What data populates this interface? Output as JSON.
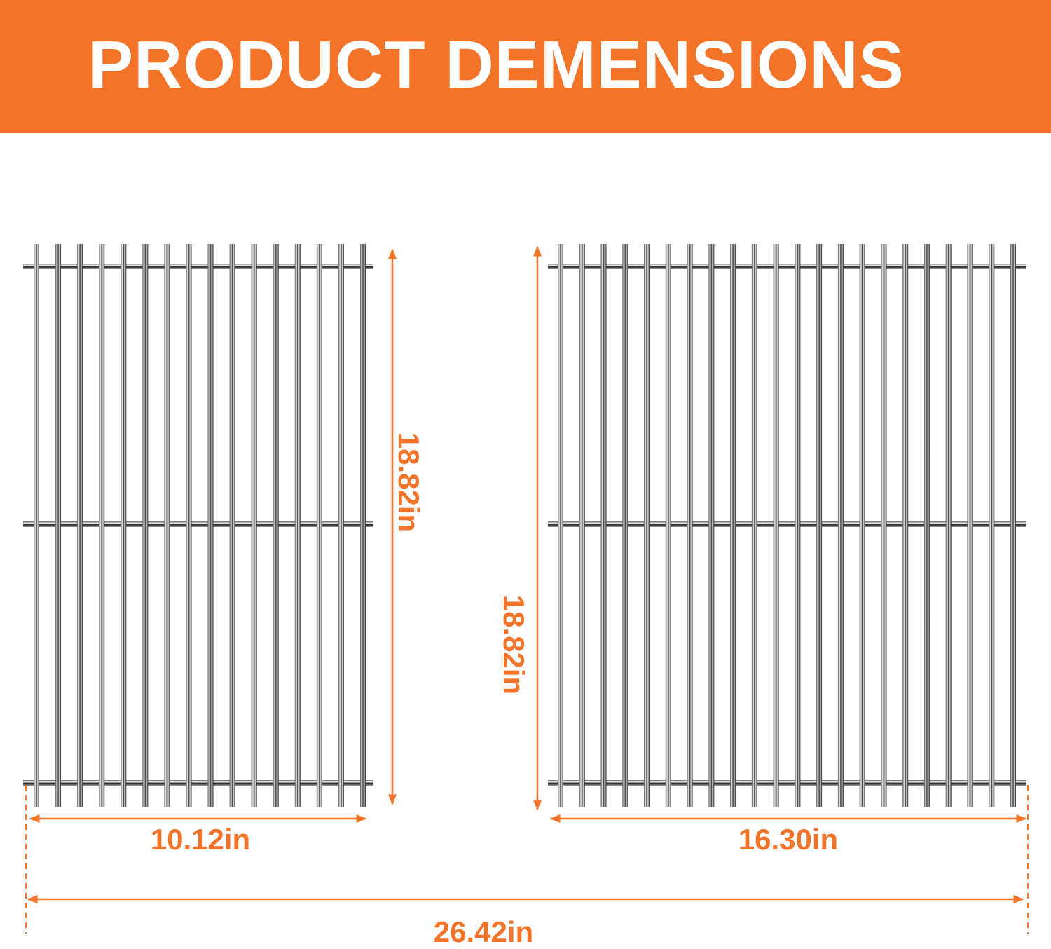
{
  "header": {
    "title": "PRODUCT DEMENSIONS"
  },
  "colors": {
    "accent": "#F37329",
    "rod_dark": "#3a3a3a",
    "rod_light": "#d8d8d8"
  },
  "grates": [
    {
      "name": "left-grate",
      "rod_count": 16,
      "height_label": "18.82in",
      "width_label": "10.12in"
    },
    {
      "name": "right-grate",
      "rod_count": 22,
      "height_label": "18.82in",
      "width_label": "16.30in"
    }
  ],
  "total_width_label": "26.42in"
}
